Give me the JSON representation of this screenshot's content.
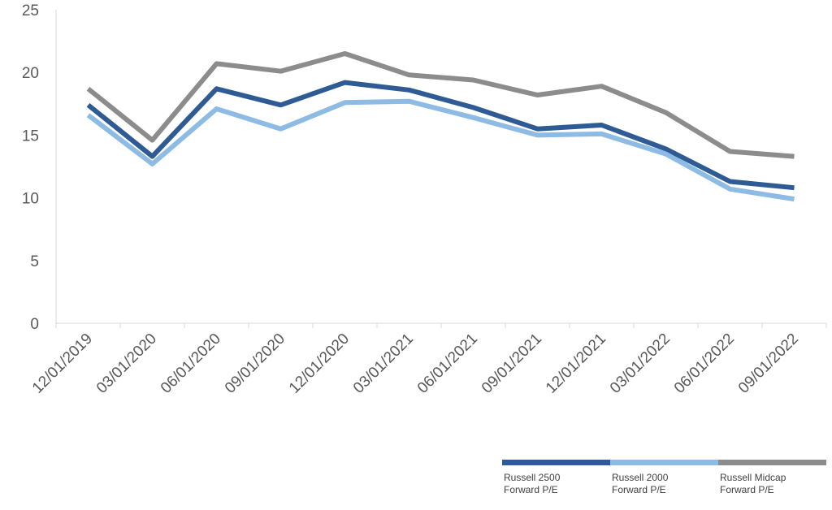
{
  "chart_data": {
    "type": "line",
    "title": "",
    "xlabel": "",
    "ylabel": "",
    "ylim": [
      0,
      25
    ],
    "yticks": [
      "0",
      "5",
      "10",
      "15",
      "20",
      "25"
    ],
    "categories": [
      "12/01/2019",
      "03/01/2020",
      "06/01/2020",
      "09/01/2020",
      "12/01/2020",
      "03/01/2021",
      "06/01/2021",
      "09/01/2021",
      "12/01/2021",
      "03/01/2022",
      "06/01/2022",
      "09/01/2022"
    ],
    "grid": false,
    "legend_position": "bottom-right",
    "series": [
      {
        "name": "Russell 2500 Forward P/E",
        "color": "#2e5b94",
        "values": [
          17.4,
          13.3,
          18.7,
          17.4,
          19.2,
          18.6,
          17.2,
          15.5,
          15.8,
          13.9,
          11.3,
          10.8
        ]
      },
      {
        "name": "Russell 2000 Forward P/E",
        "color": "#8dbbe4",
        "values": [
          16.6,
          12.7,
          17.1,
          15.5,
          17.6,
          17.7,
          16.4,
          15.0,
          15.1,
          13.5,
          10.7,
          9.9
        ]
      },
      {
        "name": "Russell Midcap Forward P/E",
        "color": "#8c8c8c",
        "values": [
          18.7,
          14.6,
          20.7,
          20.1,
          21.5,
          19.8,
          19.4,
          18.2,
          18.9,
          16.8,
          13.7,
          13.3
        ]
      }
    ]
  },
  "legend": [
    {
      "label": "Russell 2500\nForward P/E",
      "color": "#2e5b94"
    },
    {
      "label": "Russell 2000\nForward P/E",
      "color": "#8dbbe4"
    },
    {
      "label": "Russell Midcap\nForward P/E",
      "color": "#8c8c8c"
    }
  ]
}
